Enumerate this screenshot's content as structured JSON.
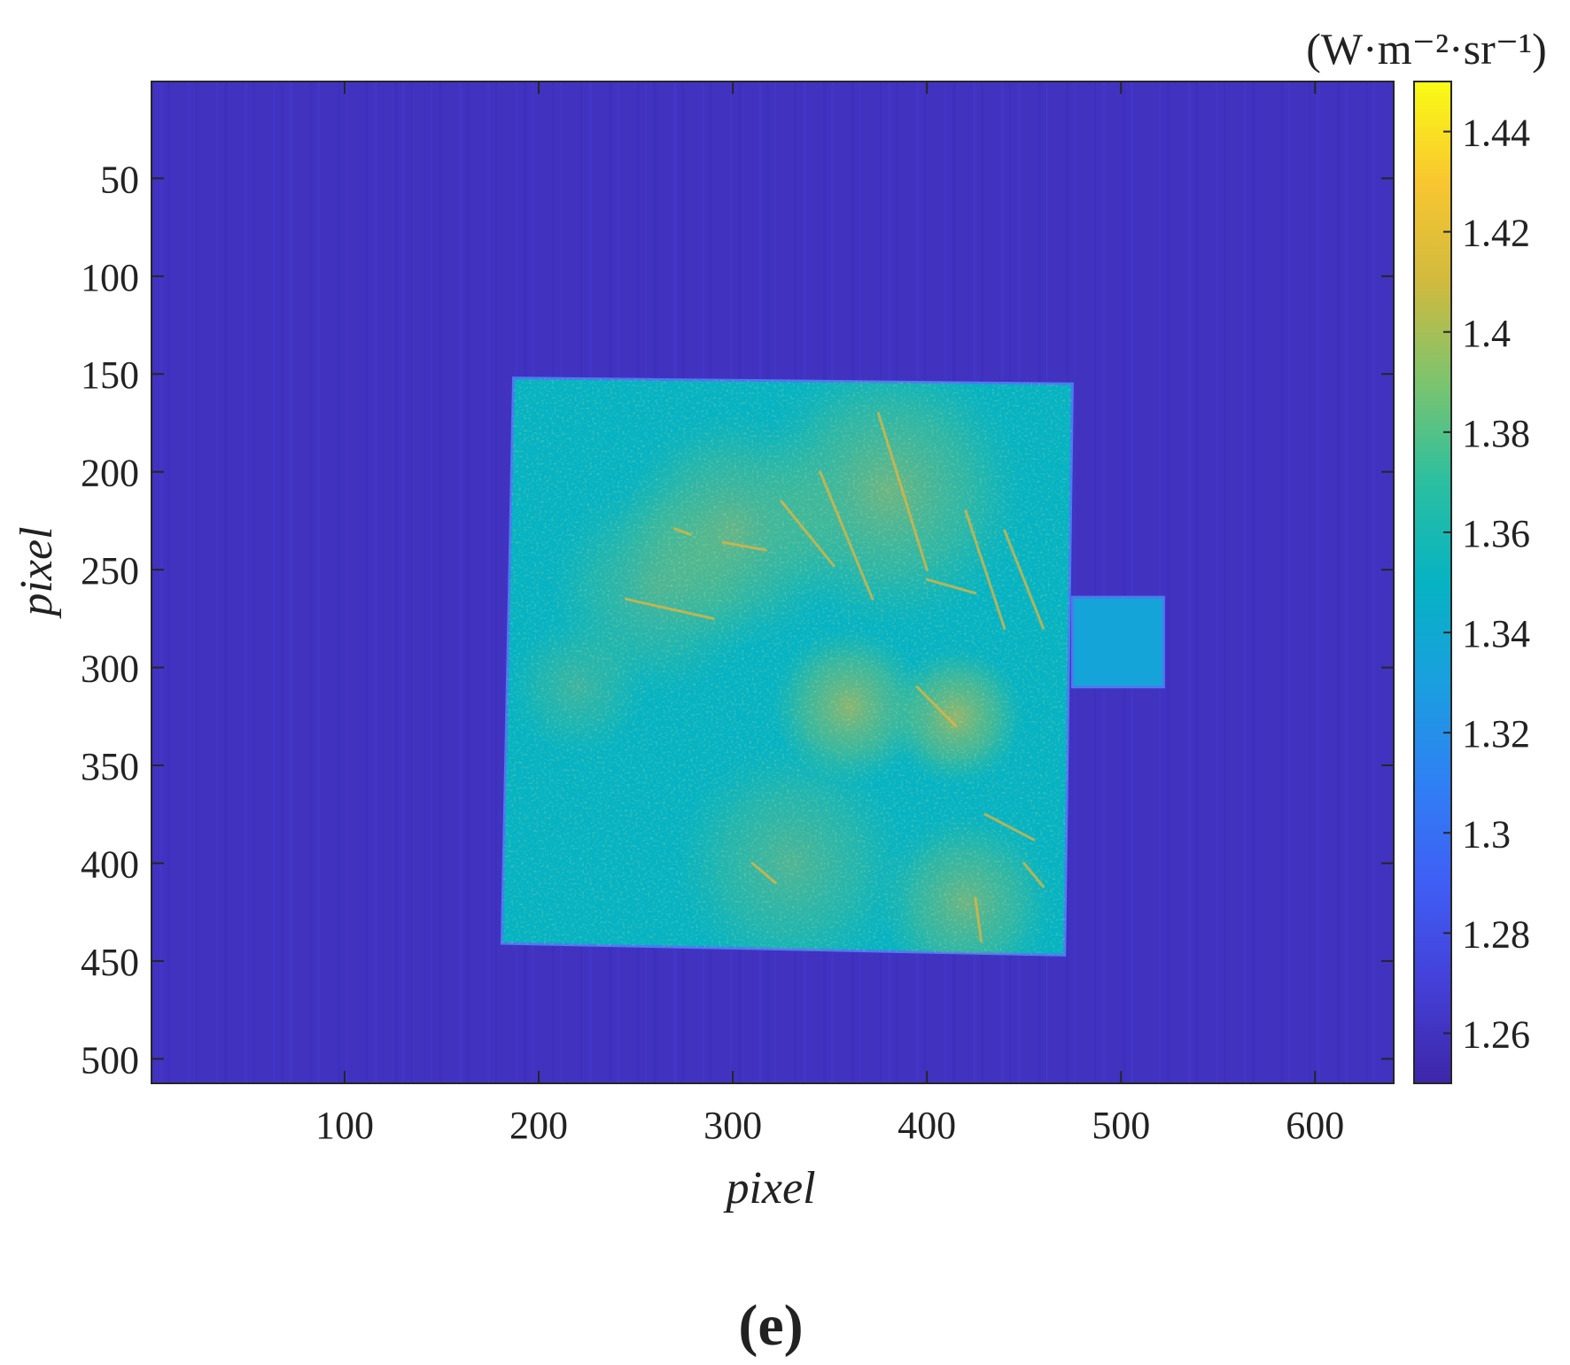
{
  "chart_data": {
    "type": "heatmap",
    "xlabel": "pixel",
    "ylabel": "pixel",
    "x_ticks": [
      100,
      200,
      300,
      400,
      500,
      600
    ],
    "y_ticks": [
      50,
      100,
      150,
      200,
      250,
      300,
      350,
      400,
      450,
      500
    ],
    "x_range": [
      1,
      640
    ],
    "y_range": [
      1,
      512
    ],
    "y_axis_direction": "top-to-bottom",
    "colormap": "parula",
    "colorbar": {
      "unit_label": "(W·m⁻²·sr⁻¹)",
      "ticks": [
        "1.26",
        "1.28",
        "1.3",
        "1.32",
        "1.34",
        "1.36",
        "1.38",
        "1.4",
        "1.42",
        "1.44"
      ],
      "range": [
        1.25,
        1.45
      ]
    },
    "regions": [
      {
        "shape": "quad",
        "corners_pixel": [
          [
            187,
            152
          ],
          [
            475,
            155
          ],
          [
            471,
            447
          ],
          [
            181,
            441
          ]
        ],
        "mean_value": 1.35
      },
      {
        "shape": "rect",
        "corners_pixel": [
          [
            475,
            264
          ],
          [
            522,
            264
          ],
          [
            522,
            310
          ],
          [
            475,
            310
          ]
        ],
        "mean_value": 1.335
      }
    ],
    "background_value": 1.26,
    "panel_label": "(e)"
  }
}
